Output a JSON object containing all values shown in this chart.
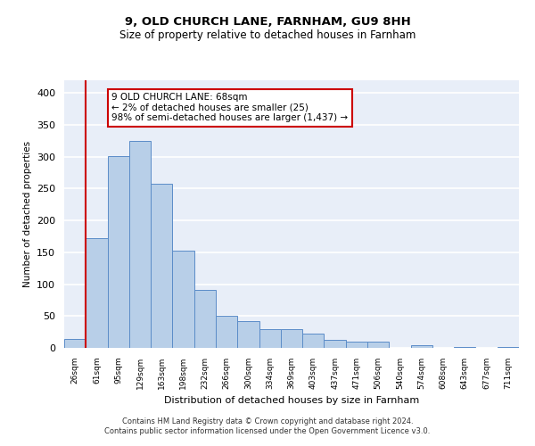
{
  "title1": "9, OLD CHURCH LANE, FARNHAM, GU9 8HH",
  "title2": "Size of property relative to detached houses in Farnham",
  "xlabel": "Distribution of detached houses by size in Farnham",
  "ylabel": "Number of detached properties",
  "bar_values": [
    14,
    172,
    301,
    325,
    258,
    152,
    91,
    50,
    42,
    29,
    29,
    23,
    12,
    10,
    10,
    0,
    4,
    0,
    1,
    0,
    2
  ],
  "bin_labels": [
    "26sqm",
    "61sqm",
    "95sqm",
    "129sqm",
    "163sqm",
    "198sqm",
    "232sqm",
    "266sqm",
    "300sqm",
    "334sqm",
    "369sqm",
    "403sqm",
    "437sqm",
    "471sqm",
    "506sqm",
    "540sqm",
    "574sqm",
    "608sqm",
    "643sqm",
    "677sqm",
    "711sqm"
  ],
  "bar_color": "#b8cfe8",
  "bar_edge_color": "#5b8cc8",
  "bg_color": "#e8eef8",
  "grid_color": "#ffffff",
  "vline_color": "#cc0000",
  "vline_x": 0.5,
  "annotation_text": "9 OLD CHURCH LANE: 68sqm\n← 2% of detached houses are smaller (25)\n98% of semi-detached houses are larger (1,437) →",
  "annotation_box_color": "#ffffff",
  "annotation_box_edge": "#cc0000",
  "ylim": [
    0,
    420
  ],
  "yticks": [
    0,
    50,
    100,
    150,
    200,
    250,
    300,
    350,
    400
  ],
  "footer1": "Contains HM Land Registry data © Crown copyright and database right 2024.",
  "footer2": "Contains public sector information licensed under the Open Government Licence v3.0."
}
